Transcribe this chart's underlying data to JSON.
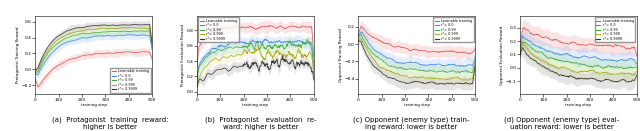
{
  "legend_labels": [
    "Learnable training",
    "r*= 0.0",
    "r*= 0.99",
    "r*= 0.999",
    "r*= 0.9999"
  ],
  "line_colors": [
    "#e05555",
    "#4488dd",
    "#44aa44",
    "#aaaa22",
    "#333333"
  ],
  "fill_colors": [
    "#f08080",
    "#88aaff",
    "#88dd88",
    "#dddd88",
    "#888888"
  ],
  "n_subplots": 4,
  "xlabel": "training step",
  "captions": [
    "(a)  Protagonist  training  reward:\nhigher is better",
    "(b)  Protagonist   evaluation  re-\nward: higher is better",
    "(c) Opponent (enemy type) train-\ning reward: lower is better",
    "(d) Opponent (enemy type) eval-\nuation reward: lower is better"
  ],
  "figsize": [
    6.4,
    1.31
  ],
  "dpi": 100
}
